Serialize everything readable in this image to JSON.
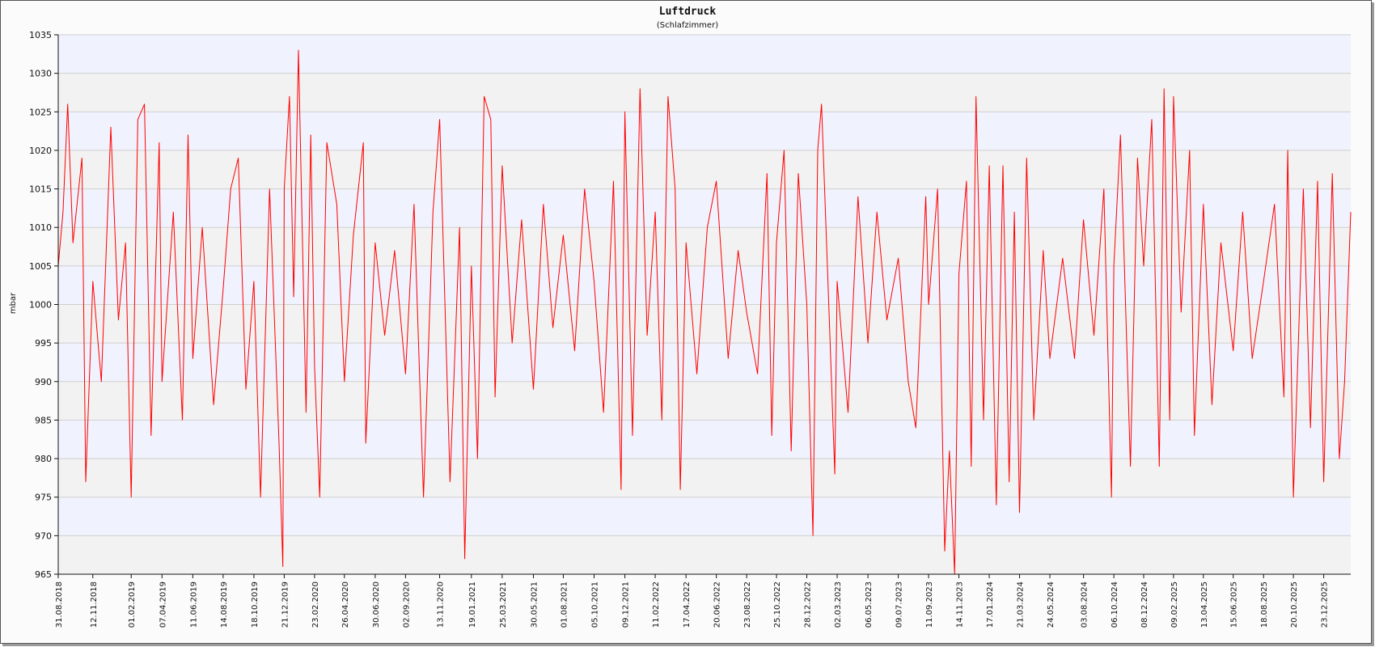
{
  "chart_data": {
    "type": "line",
    "title": "Luftdruck",
    "subtitle": "(Schlafzimmer)",
    "ylabel": "mbar",
    "xlabel": "",
    "ylim": [
      965,
      1035
    ],
    "yticks": [
      965,
      970,
      975,
      980,
      985,
      990,
      995,
      1000,
      1005,
      1010,
      1015,
      1020,
      1025,
      1030,
      1035
    ],
    "x_range": [
      "2018-08-31",
      "2026-02-18"
    ],
    "xtick_labels": [
      "31.08.2018",
      "12.11.2018",
      "01.02.2019",
      "07.04.2019",
      "11.06.2019",
      "14.08.2019",
      "18.10.2019",
      "21.12.2019",
      "23.02.2020",
      "26.04.2020",
      "30.06.2020",
      "02.09.2020",
      "13.11.2020",
      "19.01.2021",
      "25.03.2021",
      "30.05.2021",
      "01.08.2021",
      "05.10.2021",
      "09.12.2021",
      "11.02.2022",
      "17.04.2022",
      "20.06.2022",
      "23.08.2022",
      "25.10.2022",
      "28.12.2022",
      "02.03.2023",
      "06.05.2023",
      "09.07.2023",
      "11.09.2023",
      "14.11.2023",
      "17.01.2024",
      "21.03.2024",
      "24.05.2024",
      "03.08.2024",
      "06.10.2024",
      "08.12.2024",
      "09.02.2025",
      "13.04.2025",
      "15.06.2025",
      "18.08.2025",
      "20.10.2025",
      "23.12.2025"
    ],
    "xtick_dates": [
      "2018-08-31",
      "2018-11-12",
      "2019-02-01",
      "2019-04-07",
      "2019-06-11",
      "2019-08-14",
      "2019-10-18",
      "2019-12-21",
      "2020-02-23",
      "2020-04-26",
      "2020-06-30",
      "2020-09-02",
      "2020-11-13",
      "2021-01-19",
      "2021-03-25",
      "2021-05-30",
      "2021-08-01",
      "2021-10-05",
      "2021-12-09",
      "2022-02-11",
      "2022-04-17",
      "2022-06-20",
      "2022-08-23",
      "2022-10-25",
      "2022-12-28",
      "2023-03-02",
      "2023-05-06",
      "2023-07-09",
      "2023-09-11",
      "2023-11-14",
      "2024-01-17",
      "2024-03-21",
      "2024-05-24",
      "2024-08-03",
      "2024-10-06",
      "2024-12-08",
      "2025-02-09",
      "2025-04-13",
      "2025-06-15",
      "2025-08-18",
      "2025-10-20",
      "2025-12-23"
    ],
    "grid": true,
    "series": [
      {
        "name": "",
        "color": "#ff0000",
        "points": [
          [
            "2018-08-31",
            1005
          ],
          [
            "2018-09-10",
            1012
          ],
          [
            "2018-09-20",
            1026
          ],
          [
            "2018-10-01",
            1008
          ],
          [
            "2018-10-20",
            1019
          ],
          [
            "2018-10-28",
            977
          ],
          [
            "2018-11-12",
            1003
          ],
          [
            "2018-11-30",
            990
          ],
          [
            "2018-12-20",
            1023
          ],
          [
            "2019-01-05",
            998
          ],
          [
            "2019-01-20",
            1008
          ],
          [
            "2019-02-01",
            975
          ],
          [
            "2019-02-15",
            1024
          ],
          [
            "2019-03-01",
            1026
          ],
          [
            "2019-03-15",
            983
          ],
          [
            "2019-04-01",
            1021
          ],
          [
            "2019-04-07",
            990
          ],
          [
            "2019-05-01",
            1012
          ],
          [
            "2019-05-20",
            985
          ],
          [
            "2019-06-01",
            1022
          ],
          [
            "2019-06-11",
            993
          ],
          [
            "2019-07-01",
            1010
          ],
          [
            "2019-07-25",
            987
          ],
          [
            "2019-08-14",
            1002
          ],
          [
            "2019-08-30",
            1015
          ],
          [
            "2019-09-15",
            1019
          ],
          [
            "2019-10-01",
            989
          ],
          [
            "2019-10-18",
            1003
          ],
          [
            "2019-11-01",
            975
          ],
          [
            "2019-11-20",
            1015
          ],
          [
            "2019-12-10",
            982
          ],
          [
            "2019-12-18",
            966
          ],
          [
            "2019-12-21",
            1015
          ],
          [
            "2020-01-01",
            1027
          ],
          [
            "2020-01-10",
            1001
          ],
          [
            "2020-01-20",
            1033
          ],
          [
            "2020-02-05",
            986
          ],
          [
            "2020-02-15",
            1022
          ],
          [
            "2020-02-23",
            992
          ],
          [
            "2020-03-05",
            975
          ],
          [
            "2020-03-20",
            1021
          ],
          [
            "2020-04-10",
            1013
          ],
          [
            "2020-04-26",
            990
          ],
          [
            "2020-05-15",
            1009
          ],
          [
            "2020-06-05",
            1021
          ],
          [
            "2020-06-10",
            982
          ],
          [
            "2020-06-30",
            1008
          ],
          [
            "2020-07-20",
            996
          ],
          [
            "2020-08-10",
            1007
          ],
          [
            "2020-09-02",
            991
          ],
          [
            "2020-09-20",
            1013
          ],
          [
            "2020-10-10",
            975
          ],
          [
            "2020-10-30",
            1012
          ],
          [
            "2020-11-13",
            1024
          ],
          [
            "2020-12-05",
            977
          ],
          [
            "2020-12-25",
            1010
          ],
          [
            "2021-01-05",
            967
          ],
          [
            "2021-01-19",
            1005
          ],
          [
            "2021-02-01",
            980
          ],
          [
            "2021-02-15",
            1027
          ],
          [
            "2021-03-01",
            1024
          ],
          [
            "2021-03-10",
            988
          ],
          [
            "2021-03-25",
            1018
          ],
          [
            "2021-04-15",
            995
          ],
          [
            "2021-05-05",
            1011
          ],
          [
            "2021-05-30",
            989
          ],
          [
            "2021-06-20",
            1013
          ],
          [
            "2021-07-10",
            997
          ],
          [
            "2021-08-01",
            1009
          ],
          [
            "2021-08-25",
            994
          ],
          [
            "2021-09-15",
            1015
          ],
          [
            "2021-10-05",
            1003
          ],
          [
            "2021-10-25",
            986
          ],
          [
            "2021-11-15",
            1016
          ],
          [
            "2021-12-01",
            976
          ],
          [
            "2021-12-09",
            1025
          ],
          [
            "2021-12-25",
            983
          ],
          [
            "2022-01-10",
            1028
          ],
          [
            "2022-01-25",
            996
          ],
          [
            "2022-02-11",
            1012
          ],
          [
            "2022-02-25",
            985
          ],
          [
            "2022-03-10",
            1027
          ],
          [
            "2022-03-25",
            1015
          ],
          [
            "2022-04-05",
            976
          ],
          [
            "2022-04-17",
            1008
          ],
          [
            "2022-05-10",
            991
          ],
          [
            "2022-06-01",
            1010
          ],
          [
            "2022-06-20",
            1016
          ],
          [
            "2022-07-15",
            993
          ],
          [
            "2022-08-05",
            1007
          ],
          [
            "2022-08-23",
            999
          ],
          [
            "2022-09-15",
            991
          ],
          [
            "2022-10-05",
            1017
          ],
          [
            "2022-10-15",
            983
          ],
          [
            "2022-10-25",
            1008
          ],
          [
            "2022-11-10",
            1020
          ],
          [
            "2022-11-25",
            981
          ],
          [
            "2022-12-10",
            1017
          ],
          [
            "2022-12-28",
            1000
          ],
          [
            "2023-01-10",
            970
          ],
          [
            "2023-01-20",
            1020
          ],
          [
            "2023-01-28",
            1026
          ],
          [
            "2023-02-10",
            1004
          ],
          [
            "2023-02-25",
            978
          ],
          [
            "2023-03-02",
            1003
          ],
          [
            "2023-03-25",
            986
          ],
          [
            "2023-04-15",
            1014
          ],
          [
            "2023-05-06",
            995
          ],
          [
            "2023-05-25",
            1012
          ],
          [
            "2023-06-15",
            998
          ],
          [
            "2023-07-09",
            1006
          ],
          [
            "2023-07-30",
            990
          ],
          [
            "2023-08-15",
            984
          ],
          [
            "2023-09-05",
            1014
          ],
          [
            "2023-09-11",
            1000
          ],
          [
            "2023-09-30",
            1015
          ],
          [
            "2023-10-15",
            968
          ],
          [
            "2023-10-25",
            981
          ],
          [
            "2023-11-05",
            965
          ],
          [
            "2023-11-14",
            1004
          ],
          [
            "2023-11-30",
            1016
          ],
          [
            "2023-12-10",
            979
          ],
          [
            "2023-12-20",
            1027
          ],
          [
            "2024-01-05",
            985
          ],
          [
            "2024-01-17",
            1018
          ],
          [
            "2024-02-01",
            974
          ],
          [
            "2024-02-15",
            1018
          ],
          [
            "2024-02-28",
            977
          ],
          [
            "2024-03-10",
            1012
          ],
          [
            "2024-03-21",
            973
          ],
          [
            "2024-04-05",
            1019
          ],
          [
            "2024-04-20",
            985
          ],
          [
            "2024-05-10",
            1007
          ],
          [
            "2024-05-24",
            993
          ],
          [
            "2024-06-20",
            1006
          ],
          [
            "2024-07-15",
            993
          ],
          [
            "2024-08-03",
            1011
          ],
          [
            "2024-08-25",
            996
          ],
          [
            "2024-09-15",
            1015
          ],
          [
            "2024-10-01",
            975
          ],
          [
            "2024-10-06",
            1005
          ],
          [
            "2024-10-20",
            1022
          ],
          [
            "2024-11-10",
            979
          ],
          [
            "2024-11-25",
            1019
          ],
          [
            "2024-12-08",
            1005
          ],
          [
            "2024-12-25",
            1024
          ],
          [
            "2025-01-10",
            979
          ],
          [
            "2025-01-20",
            1028
          ],
          [
            "2025-02-01",
            985
          ],
          [
            "2025-02-09",
            1027
          ],
          [
            "2025-02-25",
            999
          ],
          [
            "2025-03-15",
            1020
          ],
          [
            "2025-03-25",
            983
          ],
          [
            "2025-04-13",
            1013
          ],
          [
            "2025-05-01",
            987
          ],
          [
            "2025-05-20",
            1008
          ],
          [
            "2025-06-15",
            994
          ],
          [
            "2025-07-05",
            1012
          ],
          [
            "2025-07-25",
            993
          ],
          [
            "2025-08-18",
            1003
          ],
          [
            "2025-09-10",
            1013
          ],
          [
            "2025-09-30",
            988
          ],
          [
            "2025-10-08",
            1020
          ],
          [
            "2025-10-20",
            975
          ],
          [
            "2025-11-10",
            1015
          ],
          [
            "2025-11-25",
            984
          ],
          [
            "2025-12-10",
            1016
          ],
          [
            "2025-12-23",
            977
          ],
          [
            "2026-01-10",
            1017
          ],
          [
            "2026-01-25",
            980
          ],
          [
            "2026-02-05",
            990
          ],
          [
            "2026-02-18",
            1012
          ]
        ]
      }
    ]
  },
  "colors": {
    "line": "#ff0000",
    "band_light": "#f0f2fd",
    "band_grey": "#f2f2f2",
    "grid": "#cfcfcf",
    "axis": "#111111"
  }
}
